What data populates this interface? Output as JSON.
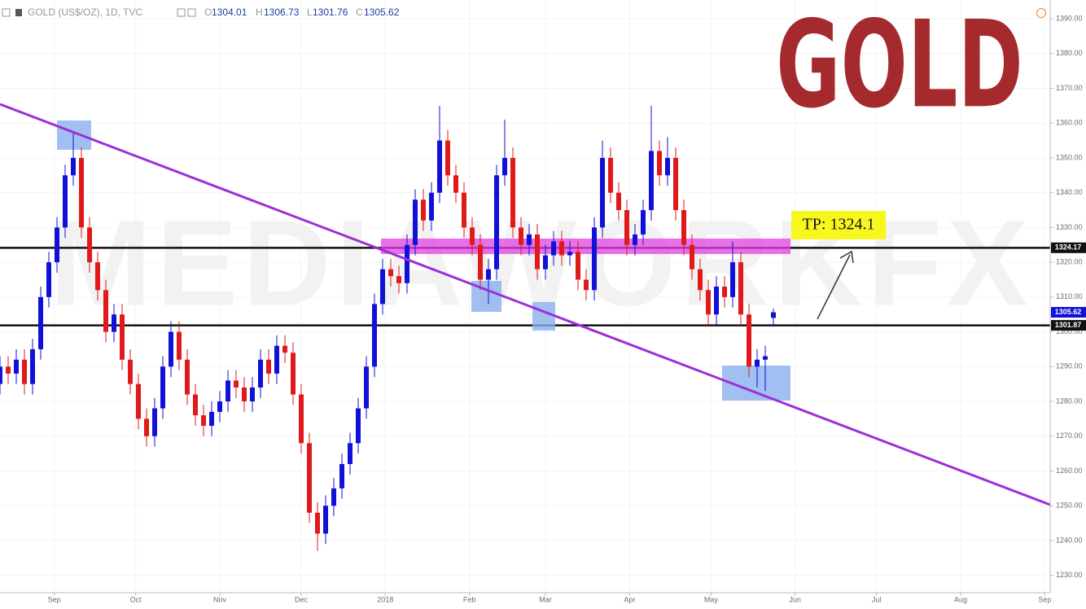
{
  "chart_data": {
    "type": "candlestick",
    "title": "GOLD (US$/OZ), 1D, TVC",
    "ohlc_letters": [
      "O",
      "H",
      "L",
      "C"
    ],
    "big_label": "GOLD",
    "watermark": "MEDIAWORKFX",
    "annotation": "TP: 1324.1",
    "up_color": "#1010d8",
    "down_color": "#e01a1a",
    "grid": true,
    "xlim": [
      0,
      387
    ],
    "xticks": [
      {
        "value": 20,
        "label": "Sep"
      },
      {
        "value": 50,
        "label": "Oct"
      },
      {
        "value": 81,
        "label": "Nov"
      },
      {
        "value": 111,
        "label": "Dec"
      },
      {
        "value": 142,
        "label": "2018"
      },
      {
        "value": 173,
        "label": "Feb"
      },
      {
        "value": 201,
        "label": "Mar"
      },
      {
        "value": 232,
        "label": "Apr"
      },
      {
        "value": 262,
        "label": "May"
      },
      {
        "value": 293,
        "label": "Jun"
      },
      {
        "value": 323,
        "label": "Jul"
      },
      {
        "value": 354,
        "label": "Aug"
      },
      {
        "value": 385,
        "label": "Sep"
      }
    ],
    "ylim": [
      1225,
      1395.4
    ],
    "yticks": [
      {
        "value": 1230,
        "label": "1230.00"
      },
      {
        "value": 1240,
        "label": "1240.00"
      },
      {
        "value": 1250,
        "label": "1250.00"
      },
      {
        "value": 1260,
        "label": "1260.00"
      },
      {
        "value": 1270,
        "label": "1270.00"
      },
      {
        "value": 1280,
        "label": "1280.00"
      },
      {
        "value": 1290,
        "label": "1290.00"
      },
      {
        "value": 1300,
        "label": "1300.00"
      },
      {
        "value": 1310,
        "label": "1310.00"
      },
      {
        "value": 1320,
        "label": "1320.00"
      },
      {
        "value": 1330,
        "label": "1330.00"
      },
      {
        "value": 1340,
        "label": "1340.00"
      },
      {
        "value": 1350,
        "label": "1350.00"
      },
      {
        "value": 1360,
        "label": "1360.00"
      },
      {
        "value": 1370,
        "label": "1370.00"
      },
      {
        "value": 1380,
        "label": "1380.00"
      },
      {
        "value": 1390,
        "label": "1390.00"
      }
    ],
    "levels": [
      {
        "value": 1324.17,
        "label": "1324.17"
      },
      {
        "value": 1301.87,
        "label": "1301.87"
      }
    ],
    "x": [
      0,
      3,
      6,
      9,
      12,
      15,
      18,
      21,
      24,
      27,
      30,
      33,
      36,
      39,
      42,
      45,
      48,
      51,
      54,
      57,
      60,
      63,
      66,
      69,
      72,
      75,
      78,
      81,
      84,
      87,
      90,
      93,
      96,
      99,
      102,
      105,
      108,
      111,
      114,
      117,
      120,
      123,
      126,
      129,
      132,
      135,
      138,
      141,
      144,
      147,
      150,
      153,
      156,
      159,
      162,
      165,
      168,
      171,
      174,
      177,
      180,
      183,
      186,
      189,
      192,
      195,
      198,
      201,
      204,
      207,
      210,
      213,
      216,
      219,
      222,
      225,
      228,
      231,
      234,
      237,
      240,
      243,
      246,
      249,
      252,
      255,
      258,
      261,
      264,
      267,
      270,
      273,
      276,
      279,
      282,
      285
    ],
    "open": [
      1285,
      1290,
      1288,
      1292,
      1285,
      1295,
      1310,
      1320,
      1330,
      1345,
      1350,
      1330,
      1320,
      1312,
      1300,
      1305,
      1292,
      1285,
      1275,
      1270,
      1278,
      1290,
      1300,
      1292,
      1282,
      1276,
      1273,
      1277,
      1280,
      1286,
      1284,
      1280,
      1284,
      1292,
      1288,
      1296,
      1294,
      1282,
      1268,
      1248,
      1242,
      1250,
      1255,
      1262,
      1268,
      1278,
      1290,
      1308,
      1318,
      1316,
      1314,
      1325,
      1338,
      1332,
      1340,
      1355,
      1345,
      1340,
      1330,
      1325,
      1315,
      1318,
      1345,
      1350,
      1330,
      1325,
      1328,
      1318,
      1322,
      1326,
      1322,
      1323,
      1315,
      1312,
      1330,
      1350,
      1340,
      1335,
      1325,
      1328,
      1335,
      1352,
      1345,
      1350,
      1335,
      1325,
      1318,
      1312,
      1305,
      1313,
      1310,
      1320,
      1305,
      1290,
      1292,
      1304.01
    ],
    "high": [
      1293,
      1293,
      1295,
      1295,
      1298,
      1313,
      1323,
      1333,
      1348,
      1357,
      1353,
      1333,
      1323,
      1315,
      1308,
      1308,
      1295,
      1288,
      1278,
      1281,
      1293,
      1303,
      1303,
      1295,
      1285,
      1279,
      1280,
      1283,
      1289,
      1289,
      1287,
      1287,
      1295,
      1295,
      1299,
      1299,
      1297,
      1285,
      1271,
      1251,
      1253,
      1258,
      1265,
      1271,
      1281,
      1293,
      1311,
      1321,
      1321,
      1319,
      1328,
      1341,
      1341,
      1343,
      1365,
      1358,
      1348,
      1343,
      1333,
      1328,
      1321,
      1348,
      1361,
      1353,
      1333,
      1331,
      1331,
      1325,
      1329,
      1329,
      1326,
      1326,
      1318,
      1333,
      1355,
      1353,
      1343,
      1338,
      1331,
      1338,
      1365,
      1355,
      1356,
      1353,
      1338,
      1328,
      1321,
      1315,
      1316,
      1316,
      1326,
      1323,
      1308,
      1295,
      1296,
      1306.73
    ],
    "low": [
      1282,
      1285,
      1285,
      1282,
      1282,
      1292,
      1307,
      1317,
      1327,
      1342,
      1327,
      1317,
      1309,
      1297,
      1297,
      1289,
      1282,
      1272,
      1267,
      1267,
      1275,
      1287,
      1289,
      1279,
      1273,
      1270,
      1270,
      1274,
      1277,
      1281,
      1277,
      1277,
      1281,
      1285,
      1285,
      1291,
      1279,
      1265,
      1245,
      1237,
      1239,
      1247,
      1252,
      1259,
      1265,
      1275,
      1287,
      1305,
      1313,
      1311,
      1311,
      1322,
      1329,
      1329,
      1337,
      1342,
      1337,
      1327,
      1322,
      1312,
      1308,
      1315,
      1342,
      1327,
      1322,
      1322,
      1315,
      1315,
      1319,
      1319,
      1319,
      1312,
      1309,
      1309,
      1327,
      1337,
      1332,
      1322,
      1322,
      1325,
      1332,
      1342,
      1342,
      1332,
      1322,
      1315,
      1309,
      1302,
      1302,
      1307,
      1307,
      1302,
      1287,
      1284,
      1283,
      1301.76
    ],
    "close": [
      1290,
      1288,
      1292,
      1285,
      1295,
      1310,
      1320,
      1330,
      1345,
      1350,
      1330,
      1320,
      1312,
      1300,
      1305,
      1292,
      1285,
      1275,
      1270,
      1278,
      1290,
      1300,
      1292,
      1282,
      1276,
      1273,
      1277,
      1280,
      1286,
      1284,
      1280,
      1284,
      1292,
      1288,
      1296,
      1294,
      1282,
      1268,
      1248,
      1242,
      1250,
      1255,
      1262,
      1268,
      1278,
      1290,
      1308,
      1318,
      1316,
      1314,
      1325,
      1338,
      1332,
      1340,
      1355,
      1345,
      1340,
      1330,
      1325,
      1315,
      1318,
      1345,
      1350,
      1330,
      1325,
      1328,
      1318,
      1322,
      1326,
      1322,
      1323,
      1315,
      1312,
      1330,
      1350,
      1340,
      1335,
      1325,
      1328,
      1335,
      1352,
      1345,
      1350,
      1335,
      1325,
      1318,
      1312,
      1305,
      1313,
      1310,
      1320,
      1305,
      1290,
      1292,
      1293,
      1305.62
    ]
  }
}
